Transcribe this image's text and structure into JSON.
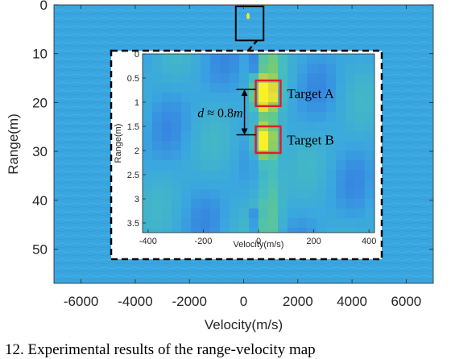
{
  "chart_data": {
    "type": "heatmap",
    "xlabel": "Velocity(m/s)",
    "ylabel": "Range(m)",
    "xlim": [
      -7000,
      7000
    ],
    "ylim": [
      0,
      57
    ],
    "x_ticks": [
      "-6000",
      "-4000",
      "-2000",
      "0",
      "2000",
      "4000",
      "6000"
    ],
    "y_ticks": [
      "0",
      "10",
      "20",
      "30",
      "40",
      "50"
    ],
    "background_color": "#3aa6e0",
    "zoom_box": {
      "x_range": [
        -200,
        200
      ],
      "y_range": [
        0,
        4
      ]
    },
    "inset": {
      "xlabel": "Velocity(m/s)",
      "ylabel": "Range(m)",
      "xlim": [
        -420,
        420
      ],
      "ylim": [
        0,
        3.7
      ],
      "x_ticks": [
        "-400",
        "-200",
        "0",
        "200",
        "400"
      ],
      "y_ticks": [
        "0",
        "0.5",
        "1",
        "1.5",
        "2",
        "2.5",
        "3",
        "3.5"
      ],
      "targets": [
        {
          "name": "Target A",
          "v_range": [
            -10,
            80
          ],
          "r_range": [
            0.55,
            1.08
          ]
        },
        {
          "name": "Target B",
          "v_range": [
            -10,
            80
          ],
          "r_range": [
            1.5,
            2.05
          ]
        }
      ],
      "separation": {
        "label_var": "d",
        "label_approx": "≈ 0.8",
        "label_unit": "m"
      }
    }
  },
  "caption_fragment": "12. Experimental results of the range-velocity map"
}
